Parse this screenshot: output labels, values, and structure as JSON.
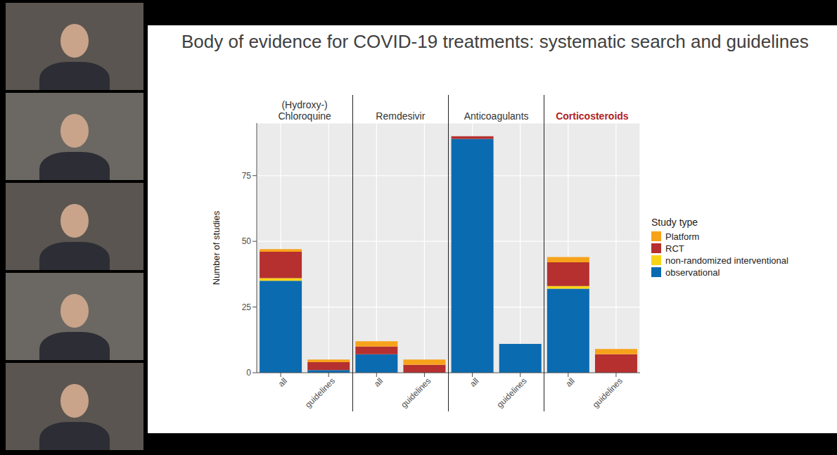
{
  "chart_data": {
    "type": "bar",
    "title": "Body of evidence for COVID-19 treatments: systematic search and guidelines",
    "y_label": "Number of studies",
    "groups": [
      {
        "name": "(Hydroxy-) Chloroquine",
        "color": "#333333",
        "categories": [
          "all",
          "guidelines"
        ]
      },
      {
        "name": "Remdesivir",
        "color": "#333333",
        "categories": [
          "all",
          "guidelines"
        ]
      },
      {
        "name": "Anticoagulants",
        "color": "#333333",
        "categories": [
          "all",
          "guidelines"
        ]
      },
      {
        "name": "Corticosteroids",
        "color": "#b22222",
        "categories": [
          "all",
          "guidelines"
        ]
      }
    ],
    "series": [
      {
        "name": "observational",
        "color": "#0b6bb0",
        "values": [
          35,
          1,
          7,
          0,
          89,
          11,
          32,
          0
        ]
      },
      {
        "name": "non-randomized interventional",
        "color": "#f7d417",
        "values": [
          1,
          0,
          0,
          0,
          0,
          0,
          1,
          0
        ]
      },
      {
        "name": "RCT",
        "color": "#b5302e",
        "values": [
          10,
          3,
          3,
          3,
          1,
          0,
          9,
          7
        ]
      },
      {
        "name": "Platform",
        "color": "#f7a21b",
        "values": [
          1,
          1,
          2,
          2,
          0,
          0,
          2,
          2
        ]
      }
    ],
    "ylim": [
      0,
      95
    ],
    "yticks": [
      0,
      25,
      50,
      75
    ],
    "stacked": true,
    "grid": true,
    "legend": "right",
    "legend_title": "Study type"
  }
}
